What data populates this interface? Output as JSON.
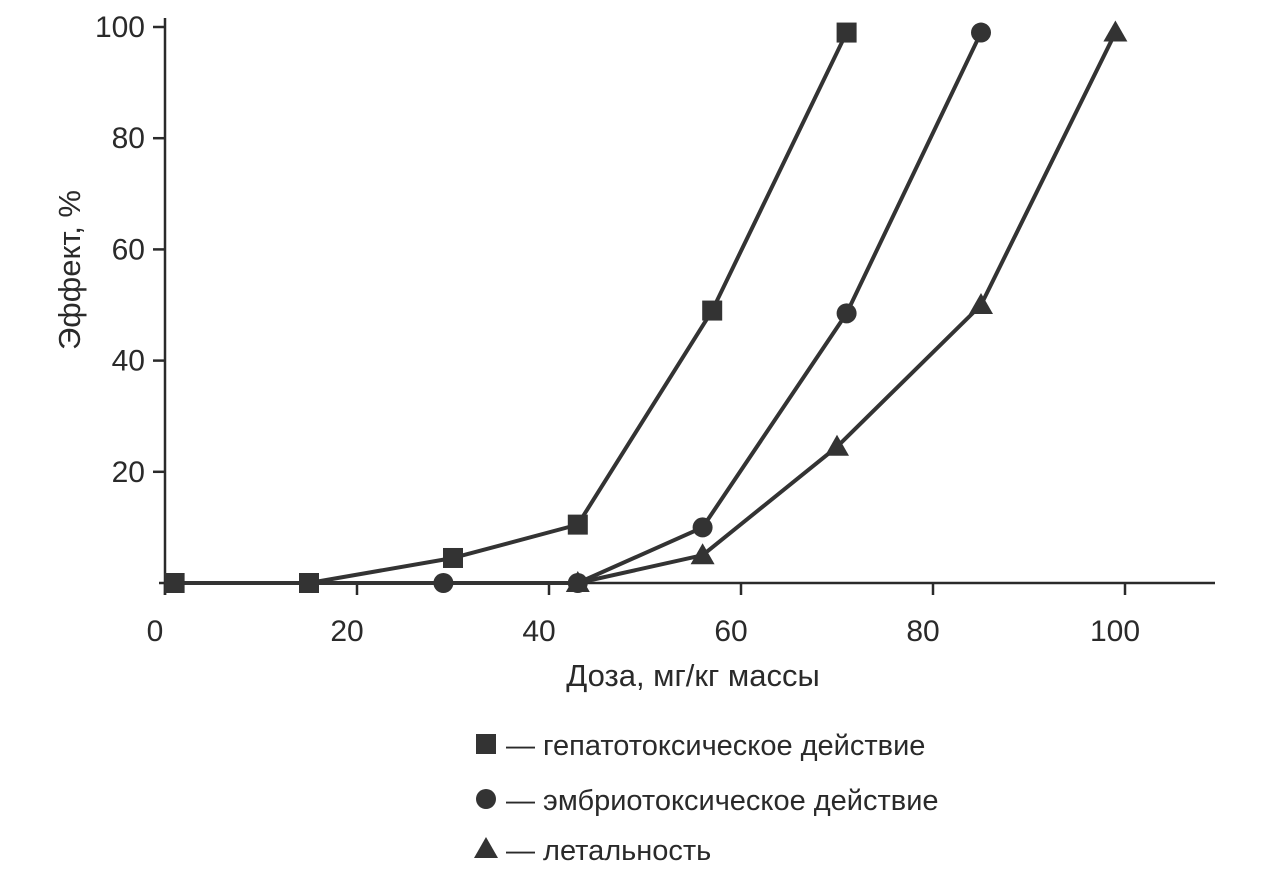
{
  "chart_data": {
    "type": "line",
    "xlabel": "Доза, мг/кг массы",
    "ylabel": "Эффект, %",
    "xlim": [
      0,
      110
    ],
    "ylim": [
      0,
      100
    ],
    "x_ticks": [
      0,
      20,
      40,
      60,
      80,
      100
    ],
    "y_ticks": [
      20,
      40,
      60,
      80,
      100
    ],
    "x_tick_labels": [
      "0",
      "20",
      "40",
      "60",
      "80",
      "100"
    ],
    "y_tick_labels": [
      "20",
      "40",
      "60",
      "80",
      "100"
    ],
    "grid": false,
    "legend_position": "bottom",
    "series": [
      {
        "name": "— гепатотоксическое действие",
        "marker": "square",
        "x": [
          1,
          15,
          30,
          43,
          57,
          71
        ],
        "y": [
          0,
          0,
          4.5,
          10.5,
          49,
          99
        ]
      },
      {
        "name": "— эмбриотоксическое действие",
        "marker": "circle",
        "x": [
          1,
          15,
          29,
          43,
          56,
          71,
          85
        ],
        "y": [
          0,
          0,
          0,
          0,
          10,
          48.5,
          99
        ]
      },
      {
        "name": "— летальность",
        "marker": "triangle",
        "x": [
          43,
          56,
          70,
          85,
          99
        ],
        "y": [
          0,
          5,
          24.5,
          50,
          99
        ]
      }
    ]
  }
}
